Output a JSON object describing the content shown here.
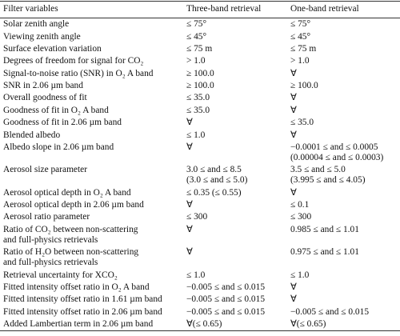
{
  "table": {
    "header": [
      "Filter variables",
      "Three-band retrieval",
      "One-band retrieval"
    ],
    "rows": [
      [
        "Solar zenith angle",
        "≤ 75°",
        "≤ 75°"
      ],
      [
        "Viewing zenith angle",
        "≤ 45°",
        "≤ 45°"
      ],
      [
        "Surface elevation variation",
        "≤ 75 m",
        "≤ 75 m"
      ],
      [
        "Degrees of freedom for signal for CO₂",
        "> 1.0",
        "> 1.0"
      ],
      [
        "Signal-to-noise ratio (SNR) in O₂ A band",
        "≥ 100.0",
        "∀"
      ],
      [
        "SNR in 2.06 µm band",
        "≥ 100.0",
        "≥ 100.0"
      ],
      [
        "Overall goodness of fit",
        "≤ 35.0",
        "∀"
      ],
      [
        "Goodness of fit in O₂ A band",
        "≤ 35.0",
        "∀"
      ],
      [
        "Goodness of fit in 2.06 µm band",
        "∀",
        "≤ 35.0"
      ],
      [
        "Blended albedo",
        "≤ 1.0",
        "∀"
      ],
      [
        "Albedo slope in 2.06 µm band",
        "∀",
        [
          "−0.0001 ≤ and ≤ 0.0005",
          "(0.00004 ≤ and ≤ 0.0003)"
        ]
      ],
      [
        "Aerosol size parameter",
        [
          "3.0 ≤ and ≤ 8.5",
          "(3.0 ≤ and ≤ 5.0)"
        ],
        [
          "3.5 ≤ and ≤ 5.0",
          "(3.995 ≤ and ≤ 4.05)"
        ]
      ],
      [
        "Aerosol optical depth in O₂ A band",
        "≤ 0.35 (≤ 0.55)",
        "∀"
      ],
      [
        "Aerosol optical depth in 2.06 µm band",
        "∀",
        "≤ 0.1"
      ],
      [
        "Aerosol ratio parameter",
        "≤ 300",
        "≤ 300"
      ],
      [
        [
          "Ratio of CO₂ between non-scattering",
          "and full-physics retrievals"
        ],
        "∀",
        "0.985 ≤ and ≤ 1.01"
      ],
      [
        [
          "Ratio of H₂O between non-scattering",
          "and full-physics retrievals"
        ],
        "∀",
        "0.975 ≤ and ≤ 1.01"
      ],
      [
        "Retrieval uncertainty for XCO₂",
        "≤ 1.0",
        "≤ 1.0"
      ],
      [
        "Fitted intensity offset ratio in O₂ A band",
        "−0.005 ≤ and ≤ 0.015",
        "∀"
      ],
      [
        "Fitted intensity offset ratio in 1.61 µm band",
        "−0.005 ≤ and ≤ 0.015",
        "∀"
      ],
      [
        "Fitted intensity offset ratio in 2.06 µm band",
        "−0.005 ≤ and ≤ 0.015",
        "−0.005 ≤ and ≤ 0.015"
      ],
      [
        "Added Lambertian term in 2.06 µm band",
        "∀(≤ 0.65)",
        "∀(≤ 0.65)"
      ]
    ]
  }
}
